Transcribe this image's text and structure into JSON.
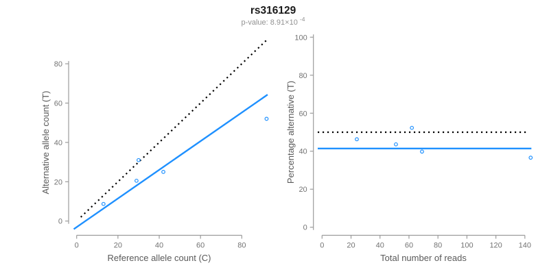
{
  "header": {
    "title": "rs316129",
    "pvalue_prefix": "p-value: 8.91×10",
    "pvalue_exponent": "-4"
  },
  "colors": {
    "accent_blue": "#1E90FF",
    "line_black": "#000000",
    "axis_gray": "#9b9b9b",
    "tick_label_gray": "#737373",
    "axis_title_gray": "#595959",
    "title_black": "#1a1a1a",
    "subtitle_gray": "#919191",
    "point_blue": "#1E90FF"
  },
  "chart_data": [
    {
      "id": "allele-count-scatter",
      "type": "scatter",
      "title": "rs316129",
      "xlabel": "Reference allele count (C)",
      "ylabel": "Alternative allele count (T)",
      "xticks": [
        0,
        20,
        40,
        60,
        80
      ],
      "yticks": [
        0,
        20,
        40,
        60,
        80
      ],
      "xlim": [
        -3.7,
        95.7
      ],
      "ylim": [
        -3.7,
        95.7
      ],
      "grid": false,
      "legend": false,
      "marker": "open-circle",
      "points": [
        [
          13,
          8.7
        ],
        [
          29,
          20.5
        ],
        [
          30,
          31
        ],
        [
          42,
          25
        ],
        [
          92,
          52
        ]
      ],
      "lines": [
        {
          "name": "identity-line",
          "style": "dotted",
          "color": "#000000",
          "x1": 2,
          "y1": 2,
          "x2": 92,
          "y2": 92
        },
        {
          "name": "regression-line",
          "style": "solid",
          "color": "#1E90FF",
          "x1": -1.4,
          "y1": -4.1,
          "x2": 92.5,
          "y2": 64.3
        }
      ]
    },
    {
      "id": "percentage-vs-reads-scatter",
      "type": "scatter",
      "title": "rs316129",
      "xlabel": "Total number of reads",
      "ylabel": "Percentage alternative (T)",
      "xticks": [
        0,
        20,
        40,
        60,
        80,
        100,
        120,
        140
      ],
      "yticks": [
        0,
        20,
        40,
        60,
        80,
        100
      ],
      "xlim": [
        -5.8,
        149.8
      ],
      "ylim": [
        -4,
        104
      ],
      "grid": false,
      "legend": false,
      "marker": "open-circle",
      "points": [
        [
          24,
          46.3
        ],
        [
          51,
          43.6
        ],
        [
          62,
          52.3
        ],
        [
          69,
          39.8
        ],
        [
          144,
          36.6
        ]
      ],
      "lines": [
        {
          "name": "expected-50-percent-line",
          "style": "dotted",
          "color": "#000000",
          "y": 50,
          "x1": -3,
          "x2": 142
        },
        {
          "name": "observed-percentage-line",
          "style": "solid",
          "color": "#1E90FF",
          "y": 41.4,
          "x1": -3,
          "x2": 144.5
        }
      ]
    }
  ]
}
